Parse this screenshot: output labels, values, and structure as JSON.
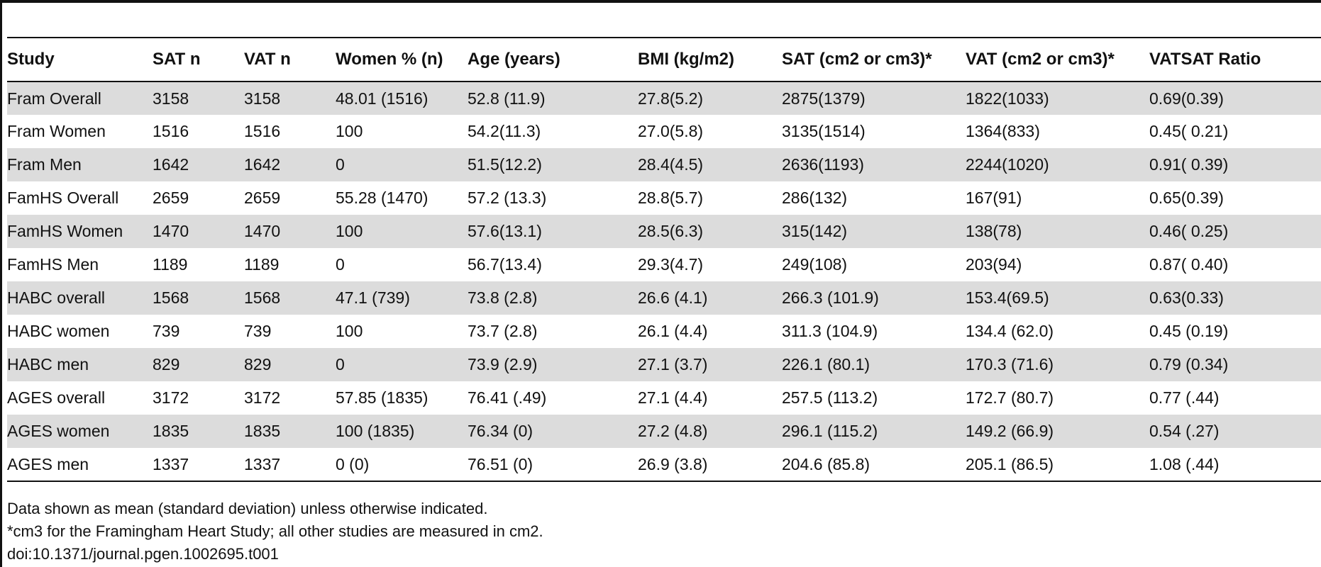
{
  "table": {
    "headers": [
      "Study",
      "SAT n",
      "VAT n",
      "Women % (n)",
      "Age (years)",
      "BMI (kg/m2)",
      "SAT (cm2 or cm3)*",
      "VAT (cm2 or cm3)*",
      "VATSAT Ratio"
    ],
    "rows": [
      [
        "Fram Overall",
        "3158",
        "3158",
        "48.01 (1516)",
        "52.8 (11.9)",
        "27.8(5.2)",
        "2875(1379)",
        "1822(1033)",
        "0.69(0.39)"
      ],
      [
        "Fram Women",
        "1516",
        "1516",
        "100",
        "54.2(11.3)",
        "27.0(5.8)",
        "3135(1514)",
        "1364(833)",
        "0.45( 0.21)"
      ],
      [
        "Fram Men",
        "1642",
        "1642",
        "0",
        "51.5(12.2)",
        "28.4(4.5)",
        "2636(1193)",
        "2244(1020)",
        "0.91( 0.39)"
      ],
      [
        "FamHS Overall",
        "2659",
        "2659",
        "55.28 (1470)",
        "57.2 (13.3)",
        "28.8(5.7)",
        "286(132)",
        "167(91)",
        "0.65(0.39)"
      ],
      [
        "FamHS Women",
        "1470",
        "1470",
        "100",
        "57.6(13.1)",
        "28.5(6.3)",
        "315(142)",
        "138(78)",
        "0.46( 0.25)"
      ],
      [
        "FamHS Men",
        "1189",
        "1189",
        "0",
        "56.7(13.4)",
        "29.3(4.7)",
        "249(108)",
        "203(94)",
        "0.87( 0.40)"
      ],
      [
        "HABC overall",
        "1568",
        "1568",
        "47.1 (739)",
        "73.8 (2.8)",
        "26.6 (4.1)",
        "266.3 (101.9)",
        "153.4(69.5)",
        "0.63(0.33)"
      ],
      [
        "HABC women",
        "739",
        "739",
        "100",
        "73.7 (2.8)",
        "26.1 (4.4)",
        "311.3 (104.9)",
        "134.4 (62.0)",
        "0.45 (0.19)"
      ],
      [
        "HABC men",
        "829",
        "829",
        "0",
        "73.9 (2.9)",
        "27.1 (3.7)",
        "226.1 (80.1)",
        "170.3 (71.6)",
        "0.79 (0.34)"
      ],
      [
        "AGES overall",
        "3172",
        "3172",
        "57.85 (1835)",
        "76.41 (.49)",
        "27.1 (4.4)",
        "257.5 (113.2)",
        "172.7 (80.7)",
        "0.77 (.44)"
      ],
      [
        "AGES women",
        "1835",
        "1835",
        "100 (1835)",
        "76.34 (0)",
        "27.2 (4.8)",
        "296.1 (115.2)",
        "149.2 (66.9)",
        "0.54 (.27)"
      ],
      [
        "AGES men",
        "1337",
        "1337",
        "0 (0)",
        "76.51 (0)",
        "26.9 (3.8)",
        "204.6 (85.8)",
        "205.1 (86.5)",
        "1.08 (.44)"
      ]
    ]
  },
  "footnotes": {
    "note": "Data shown as mean (standard deviation) unless otherwise indicated.",
    "units_note": "*cm3 for the Framingham Heart Study; all other studies are measured in cm2.",
    "doi": "doi:10.1371/journal.pgen.1002695.t001"
  },
  "colors": {
    "row_shade": "#dcdcdc",
    "rule": "#111111",
    "text": "#111111"
  }
}
